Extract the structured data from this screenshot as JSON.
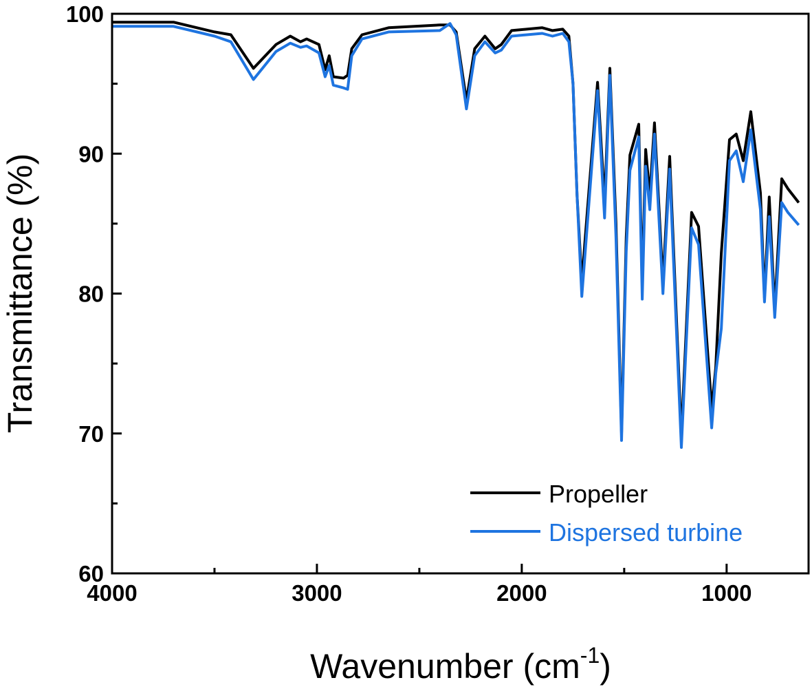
{
  "chart_data": {
    "type": "line",
    "title": "",
    "xlabel": "Wavenumber (cm",
    "xlabel_sup": "-1",
    "xlabel_close": ")",
    "ylabel": "Transmittance (%)",
    "xlim": [
      4000,
      600
    ],
    "x_reversed": true,
    "ylim": [
      60,
      100
    ],
    "x_ticks": [
      4000,
      3000,
      2000,
      1000
    ],
    "x_tick_labels": [
      "4000",
      "3000",
      "2000",
      "1000"
    ],
    "x_minor_ticks": [
      3500,
      2500,
      1500
    ],
    "y_ticks": [
      60,
      70,
      80,
      90,
      100
    ],
    "y_tick_labels": [
      "60",
      "70",
      "80",
      "90",
      "100"
    ],
    "y_minor_ticks": [
      65,
      75,
      85,
      95
    ],
    "grid": false,
    "legend_placement": "bottom-right",
    "series": [
      {
        "name": "Propeller",
        "color": "#000000",
        "x": [
          4000,
          3700,
          3500,
          3420,
          3310,
          3200,
          3130,
          3080,
          3050,
          2990,
          2960,
          2940,
          2920,
          2870,
          2850,
          2830,
          2780,
          2650,
          2400,
          2350,
          2320,
          2270,
          2230,
          2180,
          2130,
          2100,
          2050,
          1900,
          1850,
          1800,
          1770,
          1750,
          1730,
          1707,
          1690,
          1630,
          1596,
          1570,
          1540,
          1513,
          1490,
          1472,
          1429,
          1412,
          1395,
          1375,
          1352,
          1311,
          1278,
          1221,
          1171,
          1137,
          1073,
          1053,
          1026,
          986,
          953,
          919,
          882,
          835,
          815,
          792,
          765,
          731,
          701,
          648
        ],
        "y": [
          99.4,
          99.4,
          98.7,
          98.5,
          96.1,
          97.8,
          98.4,
          98.0,
          98.2,
          97.8,
          96.0,
          97.0,
          95.5,
          95.4,
          95.6,
          97.5,
          98.5,
          99.0,
          99.2,
          99.2,
          98.7,
          93.8,
          97.5,
          98.4,
          97.5,
          97.8,
          98.8,
          99.0,
          98.8,
          98.9,
          98.4,
          95.0,
          87.0,
          80.8,
          84.0,
          95.1,
          86.5,
          96.1,
          85.0,
          70.0,
          84.0,
          89.9,
          92.1,
          80.5,
          90.3,
          87.0,
          92.2,
          80.8,
          89.8,
          69.8,
          85.8,
          84.8,
          71.8,
          74.7,
          82.9,
          91.0,
          91.4,
          89.5,
          93.0,
          87.2,
          79.7,
          86.9,
          78.8,
          88.2,
          87.5,
          86.5
        ]
      },
      {
        "name": "Dispersed turbine",
        "color": "#1e74e0",
        "x": [
          4000,
          3700,
          3500,
          3420,
          3310,
          3200,
          3130,
          3080,
          3050,
          2990,
          2960,
          2940,
          2920,
          2870,
          2850,
          2830,
          2780,
          2650,
          2400,
          2350,
          2320,
          2270,
          2230,
          2180,
          2130,
          2100,
          2050,
          1900,
          1850,
          1800,
          1770,
          1750,
          1730,
          1707,
          1690,
          1630,
          1596,
          1570,
          1540,
          1513,
          1490,
          1472,
          1429,
          1412,
          1395,
          1375,
          1352,
          1311,
          1278,
          1221,
          1171,
          1137,
          1073,
          1053,
          1026,
          986,
          953,
          919,
          882,
          835,
          815,
          792,
          765,
          731,
          701,
          648
        ],
        "y": [
          99.1,
          99.1,
          98.4,
          98.0,
          95.3,
          97.3,
          97.9,
          97.6,
          97.7,
          97.2,
          95.5,
          96.3,
          94.9,
          94.7,
          94.6,
          97.0,
          98.2,
          98.7,
          98.8,
          99.3,
          98.5,
          93.2,
          97.0,
          98.0,
          97.2,
          97.4,
          98.4,
          98.6,
          98.4,
          98.6,
          98.0,
          95.0,
          87.0,
          79.8,
          83.0,
          94.5,
          85.4,
          95.6,
          84.0,
          69.5,
          83.0,
          88.8,
          91.2,
          79.6,
          89.1,
          86.0,
          91.4,
          80.0,
          88.9,
          69.0,
          84.7,
          83.5,
          70.4,
          74.3,
          77.5,
          89.5,
          90.2,
          88.0,
          91.7,
          86.0,
          79.4,
          85.5,
          78.3,
          86.5,
          85.8,
          84.9
        ]
      }
    ]
  }
}
